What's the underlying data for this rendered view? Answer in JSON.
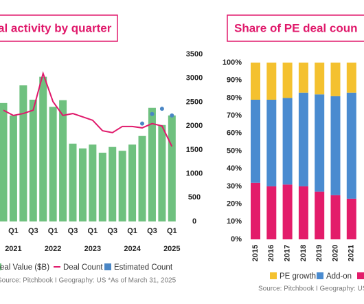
{
  "chart_data": [
    {
      "type": "combo",
      "title": "al activity by quarter",
      "categories": [
        null,
        "Q1",
        null,
        "Q3",
        null,
        "Q1",
        null,
        "Q3",
        null,
        "Q1",
        null,
        "Q3",
        null,
        "Q1",
        null,
        "Q3",
        null,
        "Q1"
      ],
      "years": [
        null,
        "2021",
        null,
        null,
        null,
        "2022",
        null,
        null,
        null,
        "2023",
        null,
        null,
        null,
        "2024",
        null,
        null,
        null,
        "2025"
      ],
      "ylim": [
        0,
        3500
      ],
      "yticks": [
        0,
        500,
        1000,
        1500,
        2000,
        2500,
        3000,
        3500
      ],
      "series": [
        {
          "name": "eal Value ($B)",
          "kind": "bar",
          "color": "#6fc17f",
          "values": [
            2480,
            2220,
            2850,
            2550,
            3030,
            2400,
            2540,
            1630,
            1530,
            1610,
            1440,
            1560,
            1480,
            1610,
            1790,
            2380,
            2020,
            2220
          ]
        },
        {
          "name": "Deal Count",
          "kind": "line",
          "color": "#e0196b",
          "values": [
            2330,
            2220,
            2260,
            2330,
            3100,
            2510,
            2220,
            2260,
            2190,
            2120,
            1900,
            1860,
            1990,
            1990,
            1960,
            2050,
            2000,
            1570
          ]
        },
        {
          "name": "Estimated Count",
          "kind": "dot",
          "color": "#4a86c5",
          "values": [
            null,
            null,
            null,
            null,
            null,
            null,
            null,
            null,
            null,
            null,
            null,
            null,
            null,
            null,
            2050,
            2250,
            2360,
            2220
          ]
        }
      ],
      "source": "Source: Pitchbook I Geography: US *As of March 31, 2025"
    },
    {
      "type": "stacked_bar",
      "title": "Share of PE deal coun",
      "categories": [
        "2015",
        "2016",
        "2017",
        "2018",
        "2019",
        "2020",
        "2021"
      ],
      "ylim": [
        0,
        100
      ],
      "yticks": [
        {
          "value": 0,
          "label": "0%"
        },
        {
          "value": 10,
          "label": "10%"
        },
        {
          "value": 20,
          "label": "20%"
        },
        {
          "value": 30,
          "label": "30%"
        },
        {
          "value": 40,
          "label": "40%"
        },
        {
          "value": 50,
          "label": "50%"
        },
        {
          "value": 60,
          "label": "60%"
        },
        {
          "value": 70,
          "label": "70%"
        },
        {
          "value": 80,
          "label": "80%"
        },
        {
          "value": 90,
          "label": "90%"
        },
        {
          "value": 100,
          "label": "100%"
        }
      ],
      "series": [
        {
          "color": "#e31c6a",
          "values": [
            32,
            30,
            31,
            30,
            27,
            25,
            23
          ]
        },
        {
          "name": "Add-on",
          "color": "#4a8bd0",
          "values": [
            47,
            49,
            49,
            53,
            55,
            56,
            60
          ]
        },
        {
          "name": "PE growth",
          "color": "#f4c12f",
          "values": [
            21,
            21,
            20,
            17,
            18,
            19,
            17
          ]
        }
      ],
      "source": "Source: Pitchbook I Geography: US *As"
    }
  ]
}
